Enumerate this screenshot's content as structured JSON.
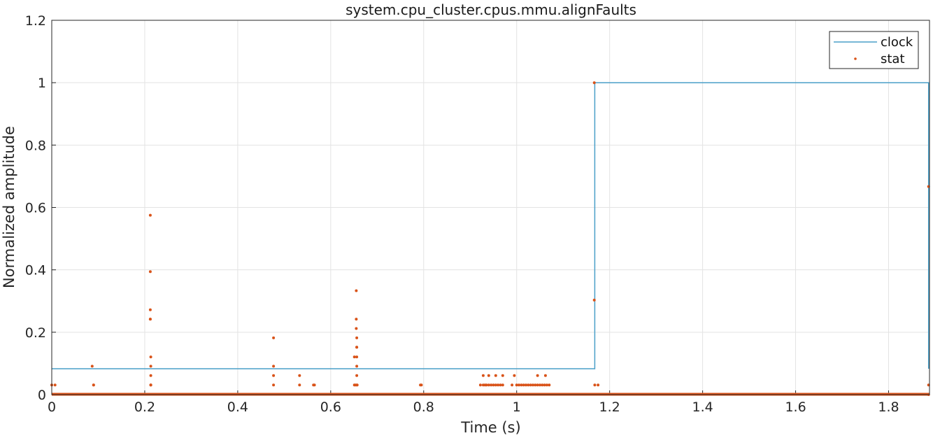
{
  "chart_data": {
    "type": "line",
    "title": "system.cpu_cluster.cpus.mmu.alignFaults",
    "xlabel": "Time (s)",
    "ylabel": "Normalized amplitude",
    "xlim": [
      0,
      1.888
    ],
    "ylim": [
      0,
      1.2
    ],
    "xticks": [
      "0",
      "0.2",
      "0.4",
      "0.6",
      "0.8",
      "1",
      "1.2",
      "1.4",
      "1.6",
      "1.8"
    ],
    "yticks": [
      "0",
      "0.2",
      "0.4",
      "0.6",
      "0.8",
      "1",
      "1.2"
    ],
    "grid": true,
    "legend_position": "top-right",
    "colors": {
      "clock": "#4a9fc8",
      "stat": "#d95319",
      "grid": "#e3e3e3",
      "axis": "#262626"
    },
    "series": [
      {
        "name": "clock",
        "style": "step-line",
        "x": [
          0,
          1.168,
          1.168,
          1.886,
          1.886
        ],
        "y": [
          0.083,
          0.083,
          1.0,
          1.0,
          0.083
        ]
      },
      {
        "name": "stat",
        "style": "markers",
        "baseline_dense_from": 0,
        "baseline_dense_to": 1.888,
        "x": [
          0.0,
          0.007,
          0.087,
          0.09,
          0.09,
          0.212,
          0.212,
          0.212,
          0.212,
          0.212,
          0.213,
          0.213,
          0.213,
          0.213,
          0.213,
          0.213,
          0.477,
          0.477,
          0.477,
          0.477,
          0.533,
          0.533,
          0.563,
          0.565,
          0.651,
          0.651,
          0.653,
          0.655,
          0.655,
          0.655,
          0.656,
          0.656,
          0.656,
          0.656,
          0.656,
          0.656,
          0.656,
          0.657,
          0.793,
          0.795,
          0.922,
          0.928,
          0.932,
          0.935,
          0.94,
          0.945,
          0.95,
          0.955,
          0.96,
          0.965,
          0.97,
          0.928,
          0.94,
          0.955,
          0.97,
          0.99,
          0.995,
          1.0,
          1.005,
          1.01,
          1.015,
          1.02,
          1.025,
          1.03,
          1.035,
          1.04,
          1.045,
          1.05,
          1.055,
          1.06,
          1.065,
          1.07,
          1.045,
          1.062,
          1.167,
          1.167,
          1.168,
          1.175,
          1.886,
          1.886,
          1.886
        ],
        "y": [
          0.031,
          0.031,
          0.091,
          0.031,
          0.031,
          0.575,
          0.394,
          0.272,
          0.242,
          0.242,
          0.121,
          0.091,
          0.061,
          0.031,
          0.031,
          0.031,
          0.182,
          0.091,
          0.061,
          0.031,
          0.061,
          0.031,
          0.031,
          0.031,
          0.121,
          0.031,
          0.031,
          0.333,
          0.242,
          0.212,
          0.182,
          0.152,
          0.152,
          0.121,
          0.091,
          0.061,
          0.031,
          0.031,
          0.031,
          0.031,
          0.031,
          0.031,
          0.031,
          0.031,
          0.031,
          0.031,
          0.031,
          0.031,
          0.031,
          0.031,
          0.031,
          0.061,
          0.061,
          0.061,
          0.061,
          0.031,
          0.061,
          0.031,
          0.031,
          0.031,
          0.031,
          0.031,
          0.031,
          0.031,
          0.031,
          0.031,
          0.031,
          0.031,
          0.031,
          0.031,
          0.031,
          0.031,
          0.061,
          0.061,
          1.0,
          0.303,
          0.031,
          0.031,
          0.667,
          0.031,
          0.0
        ]
      }
    ]
  }
}
